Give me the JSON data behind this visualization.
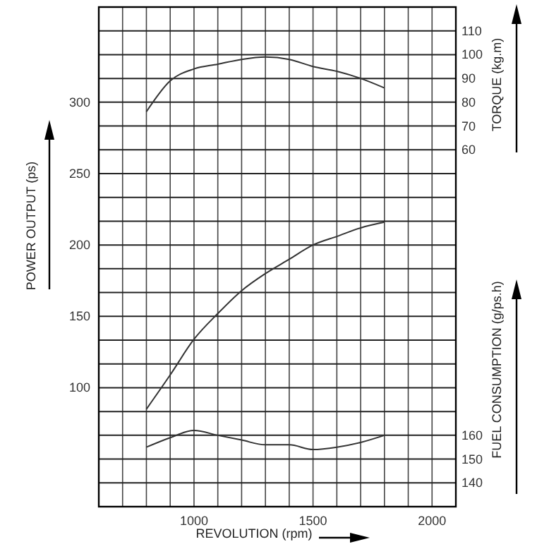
{
  "chart_data": {
    "type": "line",
    "xlabel": "REVOLUTION (rpm)",
    "ylabel": "POWER OUTPUT (ps)",
    "y2label": "TORQUE (kg.m)",
    "y3label": "FUEL CONSUMPTION (g/ps.h)",
    "x": [
      800,
      900,
      1000,
      1100,
      1200,
      1300,
      1400,
      1500,
      1600,
      1700,
      1800
    ],
    "xlim": [
      600,
      2100
    ],
    "xticks": [
      {
        "value": 700,
        "label": null
      },
      {
        "value": 800,
        "label": null
      },
      {
        "value": 900,
        "label": null
      },
      1000,
      {
        "value": 1100,
        "label": null
      },
      {
        "value": 1200,
        "label": null
      },
      {
        "value": 1300,
        "label": null
      },
      {
        "value": 1400,
        "label": null
      },
      1500,
      {
        "value": 1600,
        "label": null
      },
      {
        "value": 1700,
        "label": null
      },
      {
        "value": 1800,
        "label": null
      },
      {
        "value": 1900,
        "label": null
      },
      2000
    ],
    "ylim": [
      16.7,
      366.7
    ],
    "yticks": [
      100,
      150,
      200,
      250,
      300
    ],
    "y2lim": [
      -90,
      120
    ],
    "y2ticks": [
      {
        "value": -80,
        "label": null
      },
      {
        "value": -70,
        "label": null
      },
      {
        "value": -60,
        "label": null
      },
      {
        "value": -50,
        "label": null
      },
      {
        "value": -40,
        "label": null
      },
      {
        "value": -30,
        "label": null
      },
      {
        "value": -20,
        "label": null
      },
      {
        "value": -10,
        "label": null
      },
      {
        "value": 0,
        "label": null
      },
      {
        "value": 10,
        "label": null
      },
      {
        "value": 20,
        "label": null
      },
      {
        "value": 30,
        "label": null
      },
      {
        "value": 40,
        "label": null
      },
      {
        "value": 50,
        "label": null
      },
      60,
      70,
      80,
      90,
      100,
      110
    ],
    "y3lim": [
      130,
      340
    ],
    "y3ticks": [
      140,
      150,
      160
    ],
    "grid": true,
    "marker": "none",
    "line_style": "solid",
    "series": [
      {
        "color": "#333333",
        "axis": "y2",
        "values": [
          76,
          89,
          94,
          96,
          98,
          99,
          98,
          95,
          93,
          90,
          86
        ]
      },
      {
        "color": "#333333",
        "axis": "y",
        "values": [
          85,
          109,
          134,
          152,
          168,
          180,
          190,
          200,
          206,
          212,
          216
        ]
      },
      {
        "color": "#333333",
        "axis": "y3",
        "values": [
          155,
          159,
          162,
          160,
          158,
          156,
          156,
          154,
          155,
          157,
          160
        ]
      }
    ]
  }
}
